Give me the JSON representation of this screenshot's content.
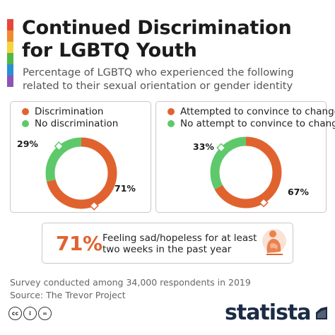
{
  "header": {
    "title_line1": "Continued Discrimination",
    "title_line2": "for LGBTQ Youth",
    "subtitle_line1": "Percentage of LGBTQ who experienced the following",
    "subtitle_line2": "related to their sexual orientation or gender identity",
    "flag_colors": [
      "#e8453c",
      "#f08a2c",
      "#f7d33c",
      "#4fb848",
      "#2a8fd6",
      "#8a55b8"
    ]
  },
  "colors": {
    "accent": "#e0632f",
    "secondary": "#5ec96b"
  },
  "chart_data": [
    {
      "type": "pie",
      "categories": [
        "Discrimination",
        "No discrimination"
      ],
      "values": [
        71,
        29
      ],
      "value_labels": [
        "71%",
        "29%"
      ],
      "colors": [
        "#e0632f",
        "#5ec96b"
      ],
      "legend": "top"
    },
    {
      "type": "pie",
      "categories": [
        "Attempted to convince to change",
        "No attempt to convince to change"
      ],
      "values": [
        67,
        33
      ],
      "value_labels": [
        "67%",
        "33%"
      ],
      "colors": [
        "#e0632f",
        "#5ec96b"
      ],
      "legend": "top"
    }
  ],
  "highlight": {
    "value": "71%",
    "text_line1": "Feeling sad/hopeless for at least",
    "text_line2": "two weeks in the past year",
    "icon": "sad-person-icon"
  },
  "footer": {
    "note_line1": "Survey conducted among 34,000 respondents in 2019",
    "note_line2": "Source: The Trevor Project",
    "license_icons": [
      "cc-icon",
      "by-icon",
      "nd-icon"
    ],
    "license_labels": [
      "cc",
      "i",
      "="
    ],
    "brand": "statista"
  }
}
